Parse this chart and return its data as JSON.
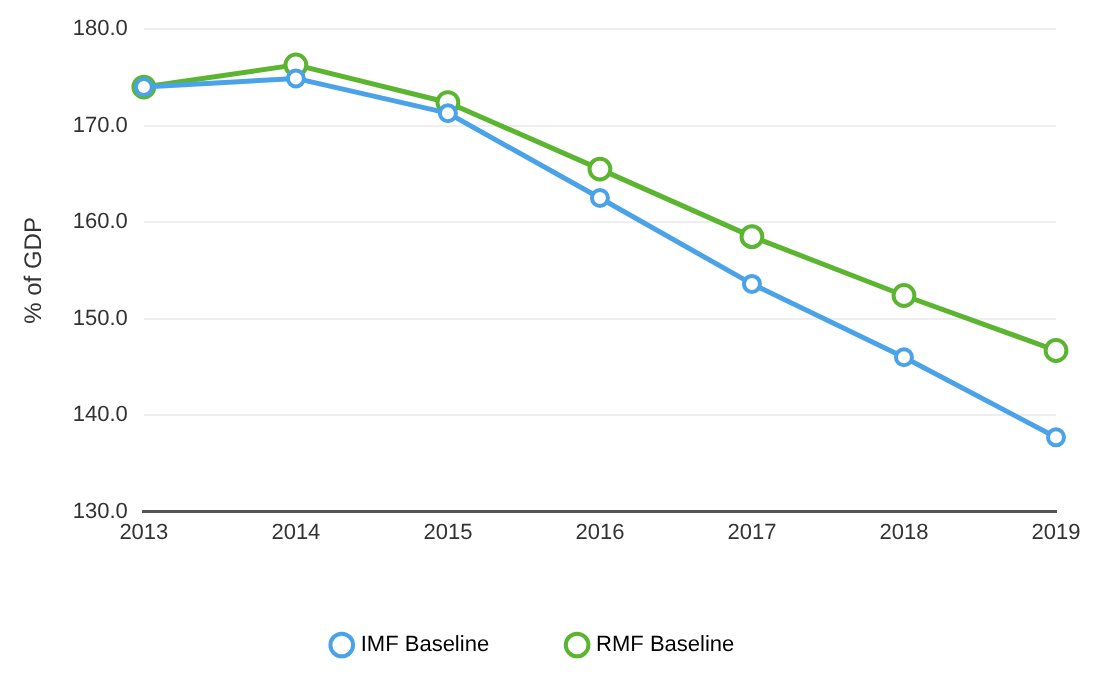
{
  "chart_data": {
    "type": "line",
    "ylabel": "% of GDP",
    "categories": [
      "2013",
      "2014",
      "2015",
      "2016",
      "2017",
      "2018",
      "2019"
    ],
    "series": [
      {
        "name": "IMF Baseline",
        "color": "#4aa3e8",
        "values": [
          174.0,
          174.9,
          171.3,
          162.5,
          153.6,
          146.0,
          137.7
        ]
      },
      {
        "name": "RMF Baseline",
        "color": "#5cb531",
        "values": [
          174.0,
          176.3,
          172.4,
          165.5,
          158.5,
          152.4,
          146.7
        ]
      }
    ],
    "ylim": [
      130,
      180
    ],
    "yticks": [
      {
        "value": 130,
        "label": "130.0"
      },
      {
        "value": 140,
        "label": "140.0"
      },
      {
        "value": 150,
        "label": "150.0"
      },
      {
        "value": 160,
        "label": "160.0"
      },
      {
        "value": 170,
        "label": "170.0"
      },
      {
        "value": 180,
        "label": "180.0"
      }
    ],
    "grid": "y",
    "legend": "bottom",
    "marker": "circle",
    "line_style": "solid"
  }
}
